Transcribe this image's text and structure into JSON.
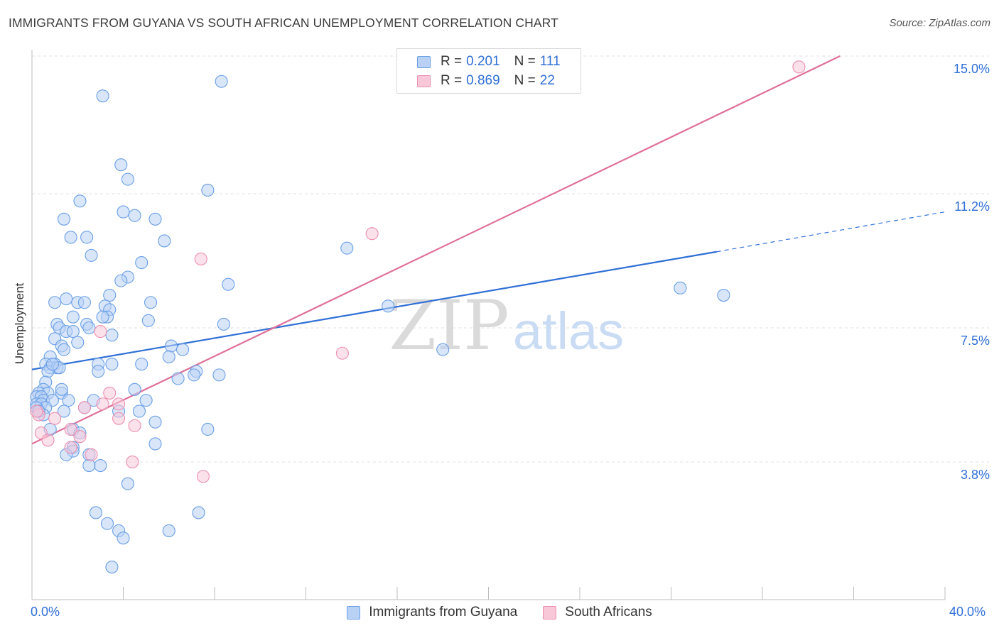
{
  "title": "IMMIGRANTS FROM GUYANA VS SOUTH AFRICAN UNEMPLOYMENT CORRELATION CHART",
  "source": "Source: ZipAtlas.com",
  "watermark": {
    "zip": "ZIP",
    "atlas": "atlas"
  },
  "legend_top": [
    {
      "r_label": "R = ",
      "r_value": "0.201",
      "n_label": "N = ",
      "n_value": "111",
      "color": "#6a9fe6",
      "fill": "#b9d1f5"
    },
    {
      "r_label": "R = ",
      "r_value": "0.869",
      "n_label": "N = ",
      "n_value": "22",
      "color": "#ec8fb0",
      "fill": "#f8c8d8"
    }
  ],
  "chart_data": {
    "type": "scatter",
    "title": "IMMIGRANTS FROM GUYANA VS SOUTH AFRICAN UNEMPLOYMENT CORRELATION CHART",
    "xlabel": "",
    "ylabel": "Unemployment",
    "xlim": [
      0,
      40
    ],
    "ylim": [
      0,
      15.0
    ],
    "x_tick_labels": [
      "0.0%",
      "40.0%"
    ],
    "y_ticks": [
      3.8,
      7.5,
      11.2,
      15.0
    ],
    "y_tick_labels": [
      "3.8%",
      "7.5%",
      "11.2%",
      "15.0%"
    ],
    "grid": true,
    "legend_position": "top-center",
    "series": [
      {
        "name": "Immigrants from Guyana",
        "color": "#6a9fe6",
        "fill": "#b9d1f5",
        "points": [
          [
            3.1,
            13.9
          ],
          [
            8.3,
            14.3
          ],
          [
            3.9,
            12.0
          ],
          [
            4.2,
            11.6
          ],
          [
            7.7,
            11.3
          ],
          [
            2.1,
            11.0
          ],
          [
            4.0,
            10.7
          ],
          [
            4.5,
            10.6
          ],
          [
            1.4,
            10.5
          ],
          [
            5.4,
            10.5
          ],
          [
            1.7,
            10.0
          ],
          [
            2.4,
            10.0
          ],
          [
            5.8,
            9.9
          ],
          [
            2.6,
            9.5
          ],
          [
            4.8,
            9.3
          ],
          [
            4.2,
            8.9
          ],
          [
            3.9,
            8.8
          ],
          [
            8.6,
            8.7
          ],
          [
            3.4,
            8.4
          ],
          [
            1.5,
            8.3
          ],
          [
            1.0,
            8.2
          ],
          [
            2.0,
            8.2
          ],
          [
            2.3,
            8.2
          ],
          [
            3.2,
            8.1
          ],
          [
            5.2,
            8.2
          ],
          [
            3.4,
            8.0
          ],
          [
            3.3,
            7.8
          ],
          [
            1.8,
            7.8
          ],
          [
            3.1,
            7.8
          ],
          [
            2.4,
            7.6
          ],
          [
            5.1,
            7.7
          ],
          [
            8.4,
            7.6
          ],
          [
            1.1,
            7.6
          ],
          [
            1.2,
            7.5
          ],
          [
            2.5,
            7.5
          ],
          [
            1.5,
            7.4
          ],
          [
            1.8,
            7.4
          ],
          [
            3.5,
            7.3
          ],
          [
            1.0,
            7.2
          ],
          [
            2.0,
            7.1
          ],
          [
            1.3,
            7.0
          ],
          [
            6.1,
            7.0
          ],
          [
            1.4,
            6.9
          ],
          [
            6.6,
            6.9
          ],
          [
            0.8,
            6.7
          ],
          [
            6.0,
            6.7
          ],
          [
            3.5,
            6.5
          ],
          [
            1.0,
            6.5
          ],
          [
            0.6,
            6.5
          ],
          [
            0.8,
            6.4
          ],
          [
            2.9,
            6.5
          ],
          [
            4.8,
            6.5
          ],
          [
            1.1,
            6.4
          ],
          [
            0.7,
            6.3
          ],
          [
            2.9,
            6.3
          ],
          [
            7.2,
            6.3
          ],
          [
            8.2,
            6.2
          ],
          [
            7.1,
            6.2
          ],
          [
            6.4,
            6.1
          ],
          [
            0.6,
            6.0
          ],
          [
            0.5,
            5.8
          ],
          [
            4.5,
            5.8
          ],
          [
            0.3,
            5.7
          ],
          [
            0.7,
            5.7
          ],
          [
            1.3,
            5.7
          ],
          [
            1.3,
            5.8
          ],
          [
            0.2,
            5.6
          ],
          [
            0.4,
            5.6
          ],
          [
            0.5,
            5.5
          ],
          [
            0.9,
            5.5
          ],
          [
            1.6,
            5.5
          ],
          [
            2.7,
            5.5
          ],
          [
            0.2,
            5.4
          ],
          [
            0.4,
            5.4
          ],
          [
            0.6,
            5.3
          ],
          [
            5.0,
            5.5
          ],
          [
            0.2,
            5.3
          ],
          [
            0.3,
            5.2
          ],
          [
            1.4,
            5.2
          ],
          [
            2.3,
            5.3
          ],
          [
            3.8,
            5.2
          ],
          [
            4.7,
            5.2
          ],
          [
            0.5,
            5.1
          ],
          [
            5.4,
            4.9
          ],
          [
            0.8,
            4.7
          ],
          [
            7.7,
            4.7
          ],
          [
            1.8,
            4.7
          ],
          [
            2.1,
            4.6
          ],
          [
            5.4,
            4.3
          ],
          [
            1.8,
            4.2
          ],
          [
            1.8,
            4.1
          ],
          [
            1.5,
            4.0
          ],
          [
            2.5,
            4.0
          ],
          [
            3.0,
            3.7
          ],
          [
            2.5,
            3.7
          ],
          [
            4.2,
            3.2
          ],
          [
            28.4,
            8.6
          ],
          [
            30.3,
            8.4
          ],
          [
            15.6,
            8.1
          ],
          [
            13.8,
            9.7
          ],
          [
            18.0,
            6.9
          ],
          [
            2.8,
            2.4
          ],
          [
            7.3,
            2.4
          ],
          [
            3.3,
            2.1
          ],
          [
            3.8,
            1.9
          ],
          [
            4.0,
            1.7
          ],
          [
            6.0,
            1.9
          ],
          [
            3.5,
            0.9
          ],
          [
            1.2,
            6.4
          ],
          [
            0.3,
            5.2
          ],
          [
            0.9,
            6.5
          ]
        ]
      },
      {
        "name": "South Africans",
        "color": "#ec8fb0",
        "fill": "#f8c8d8",
        "points": [
          [
            33.6,
            14.7
          ],
          [
            14.9,
            10.1
          ],
          [
            7.4,
            9.4
          ],
          [
            13.6,
            6.8
          ],
          [
            3.0,
            7.4
          ],
          [
            3.4,
            5.7
          ],
          [
            0.3,
            5.1
          ],
          [
            0.4,
            4.6
          ],
          [
            1.0,
            5.0
          ],
          [
            1.7,
            4.7
          ],
          [
            2.3,
            5.3
          ],
          [
            3.1,
            5.4
          ],
          [
            3.8,
            5.4
          ],
          [
            3.8,
            5.0
          ],
          [
            4.5,
            4.8
          ],
          [
            0.7,
            4.4
          ],
          [
            1.7,
            4.2
          ],
          [
            2.1,
            4.5
          ],
          [
            2.6,
            4.0
          ],
          [
            4.4,
            3.8
          ],
          [
            7.5,
            3.4
          ],
          [
            0.2,
            5.2
          ]
        ]
      }
    ],
    "trendlines": [
      {
        "series": "Immigrants from Guyana",
        "color": "#2f6fd6",
        "x0": 0,
        "y0": 6.35,
        "x1": 30.0,
        "y1": 9.6,
        "dashed_to_x": 40.0,
        "dashed_to_y": 10.7
      },
      {
        "series": "South Africans",
        "color": "#e0709a",
        "x0": 0,
        "y0": 4.3,
        "x1": 35.4,
        "y1": 15.0
      }
    ]
  },
  "bottom_legend": [
    {
      "label": "Immigrants from Guyana",
      "color": "#6a9fe6",
      "fill": "#b9d1f5"
    },
    {
      "label": "South Africans",
      "color": "#ec8fb0",
      "fill": "#f8c8d8"
    }
  ]
}
